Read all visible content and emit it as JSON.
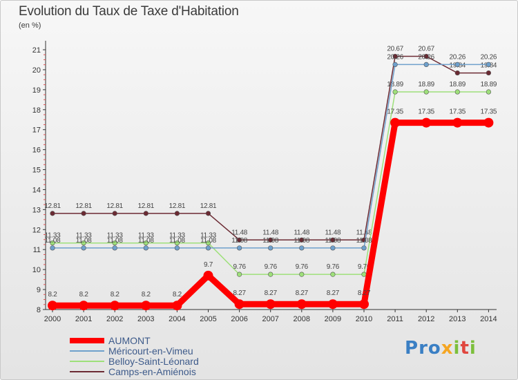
{
  "header": {
    "title": "Evolution du Taux de Taxe d'Habitation",
    "subtitle": "(en %)"
  },
  "brand": {
    "text": "Proxiti",
    "colors": [
      "#3a7fc4",
      "#3a7fc4",
      "#3a7fc4",
      "#f5a623",
      "#7cbf3c",
      "#e0463e",
      "#7cbf3c"
    ]
  },
  "chart_data": {
    "type": "line",
    "title": "Evolution du Taux de Taxe d'Habitation",
    "ylabel": "(en %)",
    "xlabel": "",
    "x": [
      "2000",
      "2001",
      "2002",
      "2003",
      "2004",
      "2005",
      "2006",
      "2007",
      "2008",
      "2009",
      "2010",
      "2011",
      "2012",
      "2013",
      "2014"
    ],
    "ylim": [
      8,
      21
    ],
    "yticks": [
      8,
      9,
      10,
      11,
      12,
      13,
      14,
      15,
      16,
      17,
      18,
      19,
      20,
      21
    ],
    "grid": false,
    "legend_position": "bottom-left",
    "series": [
      {
        "name": "Camps-en-Amiénois",
        "color": "#6b2a33",
        "values": [
          12.81,
          12.81,
          12.81,
          12.81,
          12.81,
          12.81,
          11.48,
          11.48,
          11.48,
          11.48,
          11.48,
          20.67,
          20.67,
          19.84,
          19.84
        ],
        "labels": [
          "12.81",
          "12.81",
          "12.81",
          "12.81",
          "12.81",
          "12.81",
          "11.48",
          "11.48",
          "11.48",
          "11.48",
          "11.48",
          "20.67",
          "20.67",
          "19.84",
          "19.84"
        ]
      },
      {
        "name": "Belloy-Saint-Léonard",
        "color": "#9ee07a",
        "values": [
          11.33,
          11.33,
          11.33,
          11.33,
          11.33,
          11.33,
          9.76,
          9.76,
          9.76,
          9.76,
          9.76,
          18.89,
          18.89,
          18.89,
          18.89
        ],
        "labels": [
          "11.33",
          "11.33",
          "11.33",
          "11.33",
          "11.33",
          "11.33",
          "9.76",
          "9.76",
          "9.76",
          "9.76",
          "9.76",
          "18.89",
          "18.89",
          "18.89",
          "18.89"
        ]
      },
      {
        "name": "Méricourt-en-Vimeu",
        "color": "#6ea0cc",
        "values": [
          11.08,
          11.08,
          11.08,
          11.08,
          11.08,
          11.08,
          11.08,
          11.08,
          11.08,
          11.08,
          11.08,
          20.26,
          20.26,
          20.26,
          20.26
        ],
        "labels": [
          "11.08",
          "11.08",
          "11.08",
          "11.08",
          "11.08",
          "11.08",
          "11.08",
          "11.08",
          "11.08",
          "11.08",
          "11.08",
          "20.26",
          "20.26",
          "20.26",
          "20.26"
        ]
      },
      {
        "name": "AUMONT",
        "color": "#ff0000",
        "values": [
          8.2,
          8.2,
          8.2,
          8.2,
          8.2,
          9.7,
          8.27,
          8.27,
          8.27,
          8.27,
          8.27,
          17.35,
          17.35,
          17.35,
          17.35
        ],
        "labels": [
          "8.2",
          "8.2",
          "8.2",
          "8.2",
          "8.2",
          "9.7",
          "8.27",
          "8.27",
          "8.27",
          "8.27",
          "8.27",
          "17.35",
          "17.35",
          "17.35",
          "17.35"
        ]
      }
    ],
    "legend_order": [
      "AUMONT",
      "Méricourt-en-Vimeu",
      "Belloy-Saint-Léonard",
      "Camps-en-Amiénois"
    ]
  }
}
